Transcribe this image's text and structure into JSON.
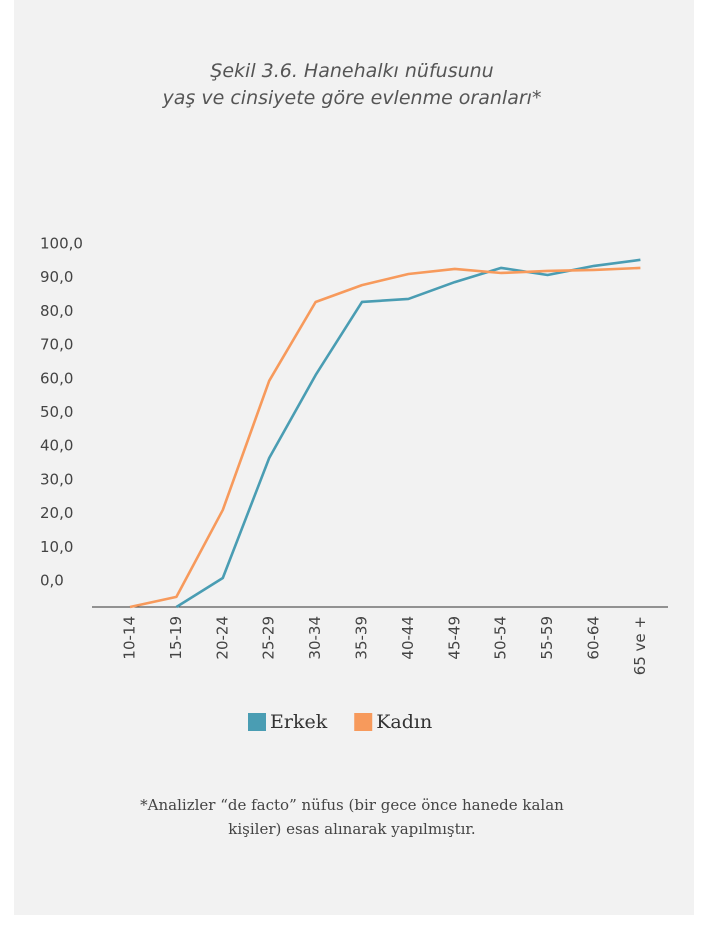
{
  "chart_data": {
    "type": "line",
    "title": [
      "Şekil 3.6. Hanehalkı nüfusunu",
      "yaş ve cinsiyete göre evlenme oranları*"
    ],
    "categories": [
      "10-14",
      "15-19",
      "20-24",
      "25-29",
      "30-34",
      "35-39",
      "40-44",
      "45-49",
      "50-54",
      "55-59",
      "60-64",
      "65 ve +"
    ],
    "series": [
      {
        "name": "Erkek",
        "color": "#4a9db3",
        "values": [
          null,
          -7.7,
          0.9,
          36.5,
          61.1,
          82.8,
          83.7,
          88.7,
          92.9,
          90.8,
          93.5,
          95.3
        ]
      },
      {
        "name": "Kadın",
        "color": "#f79a5c",
        "values": [
          -7.7,
          -4.7,
          21.1,
          59.4,
          82.8,
          87.8,
          91.1,
          92.6,
          91.4,
          92.0,
          92.3,
          92.9
        ]
      }
    ],
    "ylim": [
      -7.7,
      100
    ],
    "yticks": [
      {
        "value": 0,
        "label": "0,0"
      },
      {
        "value": 10,
        "label": "10,0"
      },
      {
        "value": 20,
        "label": "20,0"
      },
      {
        "value": 30,
        "label": "30,0"
      },
      {
        "value": 40,
        "label": "40,0"
      },
      {
        "value": 50,
        "label": "50,0"
      },
      {
        "value": 60,
        "label": "60,0"
      },
      {
        "value": 70,
        "label": "70,0"
      },
      {
        "value": 80,
        "label": "80,0"
      },
      {
        "value": 90,
        "label": "90,0"
      },
      {
        "value": 100,
        "label": "100,0"
      }
    ],
    "grid": false,
    "legend": "bottom",
    "note": [
      "*Analizler “de facto” nüfus (bir gece önce hanede kalan",
      "kişiler) esas alınarak yapılmıştır."
    ]
  }
}
